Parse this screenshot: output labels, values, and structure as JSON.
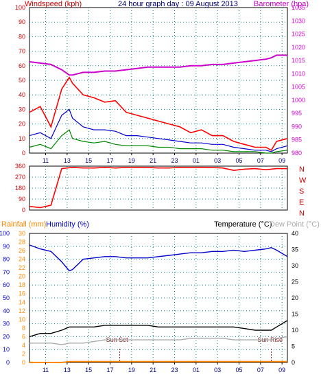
{
  "title": "24 hour graph day : 09 August 2013",
  "x_ticks": [
    "11",
    "13",
    "15",
    "17",
    "19",
    "21",
    "23",
    "01",
    "03",
    "05",
    "07",
    "09"
  ],
  "colors": {
    "wind": "#cc0000",
    "barometer": "#cc00cc",
    "gust": "#ff0000",
    "avg": "#0000cc",
    "low": "#008800",
    "direction": "#ff0000",
    "direction_avg": "#cc0000",
    "rainfall": "#ff8800",
    "humidity": "#0000cc",
    "temperature": "#000000",
    "dewpoint": "#aaaaaa",
    "sunline": "#8b2222",
    "grid": "#008080"
  },
  "top_panel": {
    "left_title": "Windspeed (kph)",
    "right_title": "Barometer (hpa)",
    "left_ticks": [
      "0",
      "10",
      "20",
      "30",
      "40",
      "50",
      "60",
      "70",
      "80",
      "90",
      "100"
    ],
    "right_ticks": [
      "980",
      "985",
      "990",
      "995",
      "1000",
      "1005",
      "1010",
      "1015",
      "1020",
      "1025",
      "1030",
      "1035"
    ]
  },
  "middle_panel": {
    "left_ticks": [
      "0",
      "90",
      "180",
      "270",
      "360"
    ],
    "compass": [
      "N",
      "W",
      "S",
      "E",
      "N"
    ]
  },
  "bottom_panel": {
    "rain_title": "Rainfall (mm)",
    "humidity_title": "Humidity (%)",
    "temp_title": "Temperature (°C)",
    "dew_title": "Dew Point (°C)",
    "humidity_ticks": [
      "0",
      "10",
      "20",
      "30",
      "40",
      "50",
      "60",
      "70",
      "80",
      "90",
      "100"
    ],
    "rain_ticks": [
      "0",
      "2",
      "4",
      "6",
      "8",
      "10",
      "12",
      "14",
      "16",
      "18",
      "20",
      "22",
      "24",
      "26",
      "28",
      "30"
    ],
    "temp_ticks": [
      "0",
      "5",
      "10",
      "15",
      "20",
      "25",
      "30",
      "35",
      "40"
    ],
    "sunset_label": "Sun Set",
    "sunrise_label": "Sun Rise"
  },
  "chart_data": [
    {
      "type": "line",
      "panel": "wind_barometer",
      "x_unit": "hours from 09:30 (x axis ticks 11 to 09)",
      "xlim": [
        0,
        24
      ],
      "y_left": {
        "label": "Windspeed (kph)",
        "lim": [
          0,
          100
        ]
      },
      "y_right": {
        "label": "Barometer (hpa)",
        "lim": [
          980,
          1035
        ]
      },
      "x": [
        0,
        1,
        2,
        3,
        3.7,
        4,
        5,
        6,
        7,
        8,
        9,
        10,
        11,
        12,
        13,
        14,
        15,
        16,
        17,
        18,
        19,
        20,
        21,
        22,
        22.5,
        23,
        24
      ],
      "series": [
        {
          "name": "gust",
          "axis": "left",
          "values": [
            28,
            32,
            18,
            44,
            52,
            48,
            40,
            38,
            35,
            36,
            28,
            26,
            24,
            22,
            20,
            18,
            14,
            16,
            12,
            12,
            8,
            6,
            4,
            4,
            2,
            8,
            10
          ]
        },
        {
          "name": "average",
          "axis": "left",
          "values": [
            12,
            14,
            10,
            26,
            30,
            24,
            18,
            16,
            16,
            15,
            12,
            12,
            11,
            10,
            9,
            8,
            7,
            7,
            6,
            6,
            4,
            3,
            2,
            2,
            1,
            3,
            5
          ]
        },
        {
          "name": "low",
          "axis": "left",
          "values": [
            4,
            6,
            3,
            12,
            16,
            10,
            8,
            7,
            8,
            6,
            5,
            5,
            5,
            4,
            4,
            3,
            3,
            3,
            2,
            2,
            1,
            1,
            1,
            0,
            0,
            1,
            2
          ]
        },
        {
          "name": "barometer",
          "axis": "right",
          "values": [
            1014.5,
            1014,
            1013.5,
            1011.5,
            1009.5,
            1009.5,
            1010.5,
            1010.5,
            1011,
            1011,
            1011.5,
            1012,
            1012.5,
            1012.5,
            1012.5,
            1012.5,
            1013,
            1013,
            1013.5,
            1013.5,
            1014,
            1014.5,
            1015,
            1015.5,
            1016,
            1017,
            1017
          ]
        }
      ]
    },
    {
      "type": "line",
      "panel": "wind_direction",
      "xlim": [
        0,
        24
      ],
      "ylim": [
        0,
        360
      ],
      "y_labels": [
        "0",
        "90",
        "180",
        "270",
        "360"
      ],
      "x": [
        0,
        1,
        2,
        3,
        4,
        5,
        6,
        7,
        8,
        9,
        10,
        11,
        12,
        13,
        14,
        15,
        16,
        17,
        18,
        19,
        20,
        21,
        22,
        23,
        24
      ],
      "series": [
        {
          "name": "direction",
          "values": [
            30,
            20,
            40,
            340,
            350,
            345,
            345,
            350,
            345,
            350,
            350,
            350,
            345,
            345,
            350,
            350,
            350,
            348,
            345,
            325,
            335,
            340,
            330,
            340,
            340
          ]
        }
      ]
    },
    {
      "type": "line",
      "panel": "rain_humidity_temperature",
      "xlim": [
        0,
        24
      ],
      "y_left_humidity": {
        "label": "Humidity (%)",
        "lim": [
          0,
          100
        ]
      },
      "y_left_rain": {
        "label": "Rainfall (mm)",
        "lim": [
          0,
          30
        ]
      },
      "y_right": {
        "label": "Temperature (°C)",
        "lim": [
          0,
          40
        ]
      },
      "x": [
        0,
        1,
        2,
        3,
        3.7,
        4,
        5,
        6,
        7,
        8,
        9,
        10,
        11,
        12,
        13,
        14,
        15,
        16,
        17,
        18,
        19,
        20,
        21,
        22,
        22.5,
        23,
        24
      ],
      "series": [
        {
          "name": "Humidity",
          "axis": "humidity",
          "values": [
            91,
            88,
            86,
            78,
            71,
            72,
            80,
            81,
            82,
            82,
            81,
            81,
            81,
            82,
            83,
            84,
            85,
            85,
            86,
            86,
            87,
            86,
            87,
            88,
            89,
            87,
            82
          ]
        },
        {
          "name": "Rainfall",
          "axis": "rain",
          "values": [
            0,
            0,
            0,
            0,
            0.2,
            0.2,
            0.2,
            0.2,
            0.2,
            0.2,
            0.2,
            0.2,
            0.2,
            0.2,
            0.2,
            0.2,
            0.2,
            0.2,
            0.2,
            0.2,
            0.2,
            0.2,
            0.2,
            0.2,
            0.2,
            0.2,
            0.2
          ]
        },
        {
          "name": "Temperature",
          "axis": "right",
          "values": [
            8,
            9,
            9,
            10,
            11,
            11,
            11,
            11,
            11.5,
            11.5,
            11.5,
            11.5,
            11.5,
            11,
            11,
            11,
            11,
            11,
            11,
            11,
            11,
            10.5,
            10,
            10,
            10,
            11,
            13
          ]
        },
        {
          "name": "Dew Point",
          "axis": "right",
          "values": [
            6,
            6,
            6,
            5.5,
            6,
            6,
            6,
            6.5,
            7,
            7,
            7,
            7,
            7,
            7,
            7,
            7,
            7.5,
            7.5,
            7.5,
            7.5,
            7,
            7,
            7,
            7,
            7,
            7.5,
            8
          ]
        }
      ]
    }
  ]
}
